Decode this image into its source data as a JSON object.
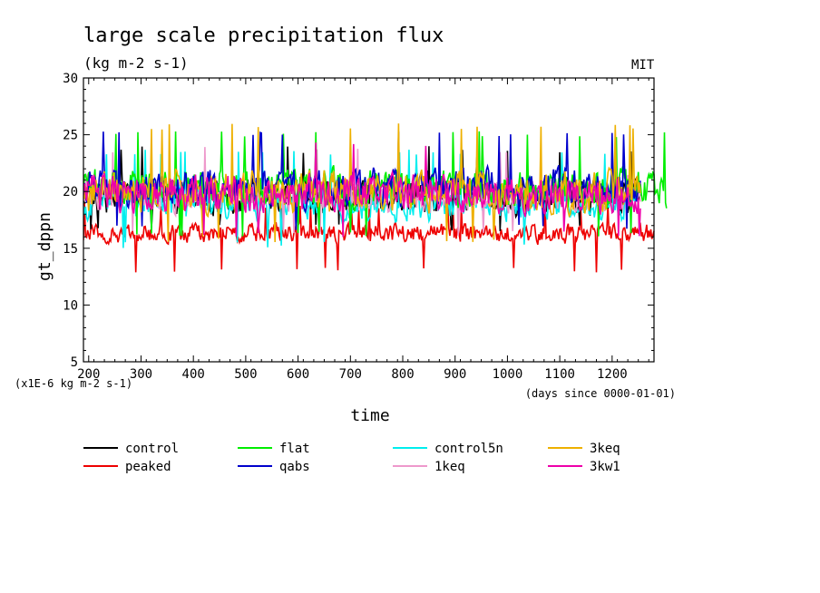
{
  "chart_data": {
    "type": "line",
    "title": "large scale precipitation flux",
    "subtitle": "(kg m-2 s-1)",
    "corner_label": "MIT",
    "xlabel": "time",
    "x_units": "(days since 0000-01-01)",
    "ylabel": "gt_dppn",
    "y_units": "(x1E-6 kg m-2 s-1)",
    "xlim": [
      190,
      1280
    ],
    "ylim": [
      5,
      30
    ],
    "x_ticks": [
      200,
      300,
      400,
      500,
      600,
      700,
      800,
      900,
      1000,
      1100,
      1200
    ],
    "y_ticks": [
      5,
      10,
      15,
      20,
      25,
      30
    ],
    "grid": false,
    "legend_position": "bottom",
    "series": [
      {
        "name": "control",
        "color": "#000000",
        "x_range": [
          190,
          1255
        ],
        "mean": 19.5,
        "amplitude": 2.2,
        "min": 16.5,
        "max": 24.0
      },
      {
        "name": "flat",
        "color": "#00ee00",
        "x_range": [
          190,
          1305
        ],
        "mean": 20.3,
        "amplitude": 2.3,
        "min": 16.0,
        "max": 25.3
      },
      {
        "name": "control5n",
        "color": "#00eeee",
        "x_range": [
          190,
          1255
        ],
        "mean": 19.0,
        "amplitude": 2.1,
        "min": 15.0,
        "max": 23.8
      },
      {
        "name": "3keq",
        "color": "#eeb000",
        "x_range": [
          190,
          1255
        ],
        "mean": 20.0,
        "amplitude": 2.5,
        "min": 15.5,
        "max": 26.0
      },
      {
        "name": "peaked",
        "color": "#ee0000",
        "x_range": [
          190,
          1280
        ],
        "mean": 16.3,
        "amplitude": 1.2,
        "min": 12.8,
        "max": 19.0
      },
      {
        "name": "qabs",
        "color": "#0000cc",
        "x_range": [
          190,
          1255
        ],
        "mean": 20.3,
        "amplitude": 2.3,
        "min": 16.5,
        "max": 25.4
      },
      {
        "name": "1keq",
        "color": "#ee99cc",
        "x_range": [
          190,
          1255
        ],
        "mean": 19.8,
        "amplitude": 2.1,
        "min": 16.0,
        "max": 24.0
      },
      {
        "name": "3kw1",
        "color": "#ee00aa",
        "x_range": [
          190,
          1255
        ],
        "mean": 19.8,
        "amplitude": 2.3,
        "min": 16.0,
        "max": 24.5
      }
    ]
  }
}
